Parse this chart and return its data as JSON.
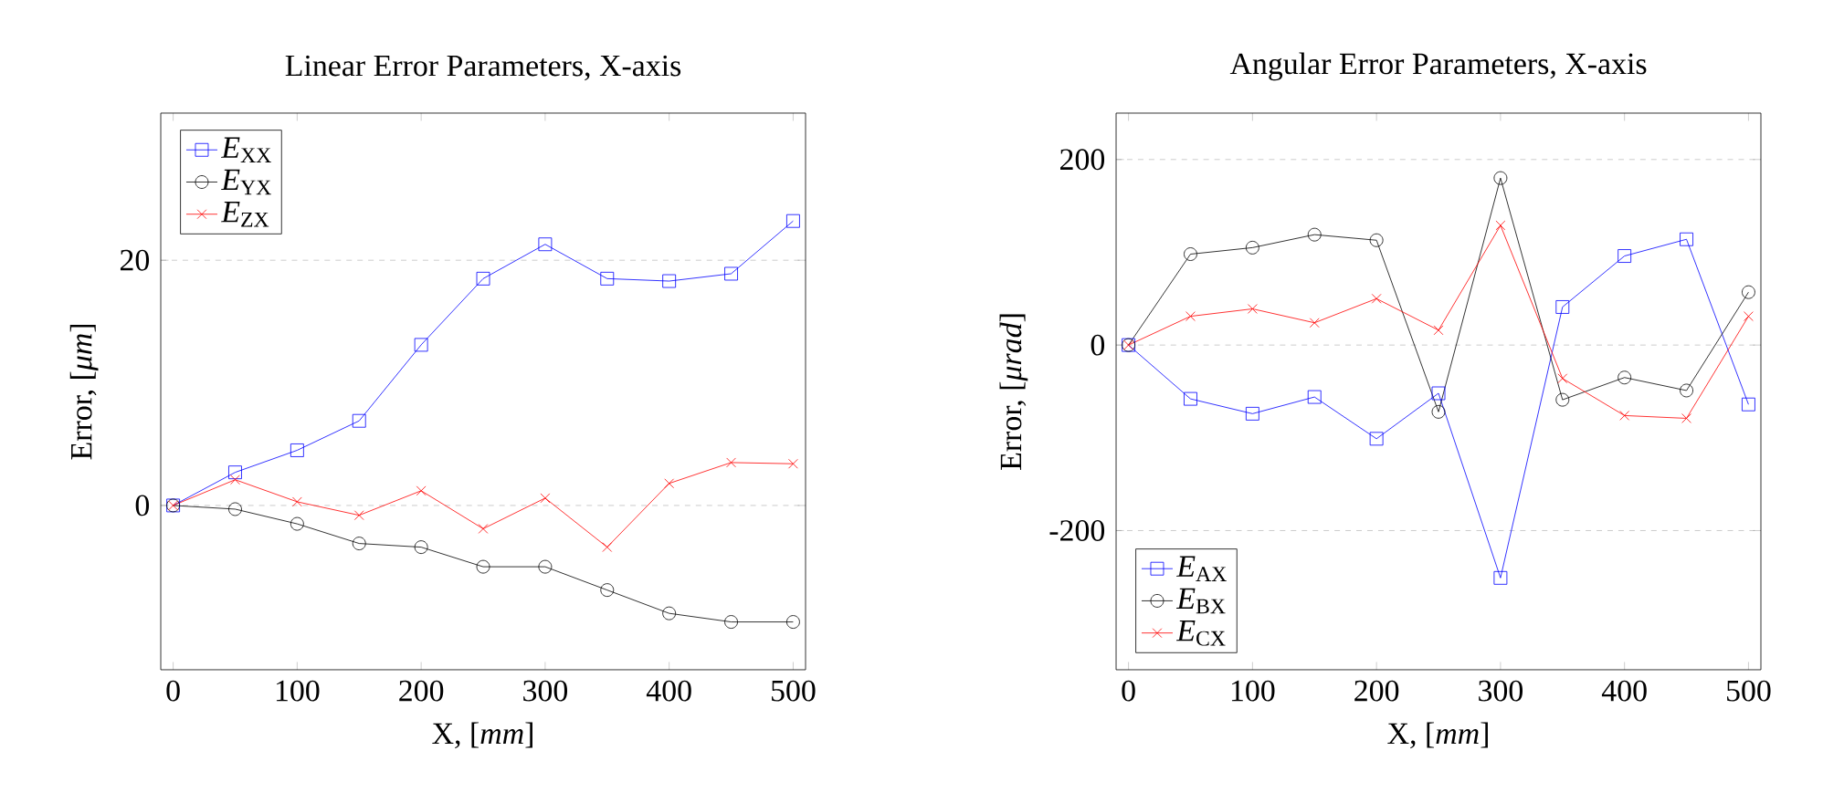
{
  "chart_data": [
    {
      "type": "line",
      "title": "Linear Error Parameters, X-axis",
      "xlabel": "X, [*mm*]",
      "ylabel": "Error, [*μm*]",
      "x": [
        0,
        50,
        100,
        150,
        200,
        250,
        300,
        350,
        400,
        450,
        500
      ],
      "series": [
        {
          "name": "*E*$_{XX}$",
          "color": "#0000ff",
          "marker": "square",
          "values": [
            0,
            2.7,
            4.5,
            6.9,
            13.1,
            18.5,
            21.3,
            18.5,
            18.3,
            18.9,
            23.2
          ]
        },
        {
          "name": "*E*$_{YX}$",
          "color": "#000000",
          "marker": "circle",
          "values": [
            0,
            -0.3,
            -1.5,
            -3.1,
            -3.4,
            -5.0,
            -5.0,
            -6.9,
            -8.8,
            -9.5,
            -9.5
          ]
        },
        {
          "name": "*E*$_{ZX}$",
          "color": "#ff0000",
          "marker": "cross",
          "values": [
            0,
            2.1,
            0.3,
            -0.8,
            1.2,
            -1.9,
            0.6,
            -3.4,
            1.8,
            3.5,
            3.4
          ]
        }
      ],
      "xlim": [
        -10,
        510
      ],
      "ylim": [
        -13.4,
        32
      ],
      "xticks": [
        0,
        100,
        200,
        300,
        400,
        500
      ],
      "yticks": [
        0,
        20
      ],
      "grid": "y",
      "legend": "top left",
      "line_style": "solid"
    },
    {
      "type": "line",
      "title": "Angular Error Parameters, X-axis",
      "xlabel": "X, [*mm*]",
      "ylabel": "Error, [*μrad*]",
      "x": [
        0,
        50,
        100,
        150,
        200,
        250,
        300,
        350,
        400,
        450,
        500
      ],
      "series": [
        {
          "name": "*E*$_{AX}$",
          "color": "#0000ff",
          "marker": "square",
          "values": [
            0,
            -58,
            -74,
            -56,
            -101,
            -52,
            -251,
            41,
            96,
            114,
            -64
          ]
        },
        {
          "name": "*E*$_{BX}$",
          "color": "#000000",
          "marker": "circle",
          "values": [
            0,
            98,
            105,
            119,
            113,
            -72,
            180,
            -59,
            -35,
            -49,
            57
          ]
        },
        {
          "name": "*E*$_{CX}$",
          "color": "#ff0000",
          "marker": "cross",
          "values": [
            0,
            31,
            39,
            24,
            50,
            16,
            129,
            -36,
            -76,
            -79,
            31
          ]
        }
      ],
      "xlim": [
        -10,
        510
      ],
      "ylim": [
        -350,
        250
      ],
      "xticks": [
        0,
        100,
        200,
        300,
        400,
        500
      ],
      "yticks": [
        -200,
        0,
        200
      ],
      "grid": "y",
      "legend": "bottom left",
      "line_style": "solid"
    }
  ]
}
